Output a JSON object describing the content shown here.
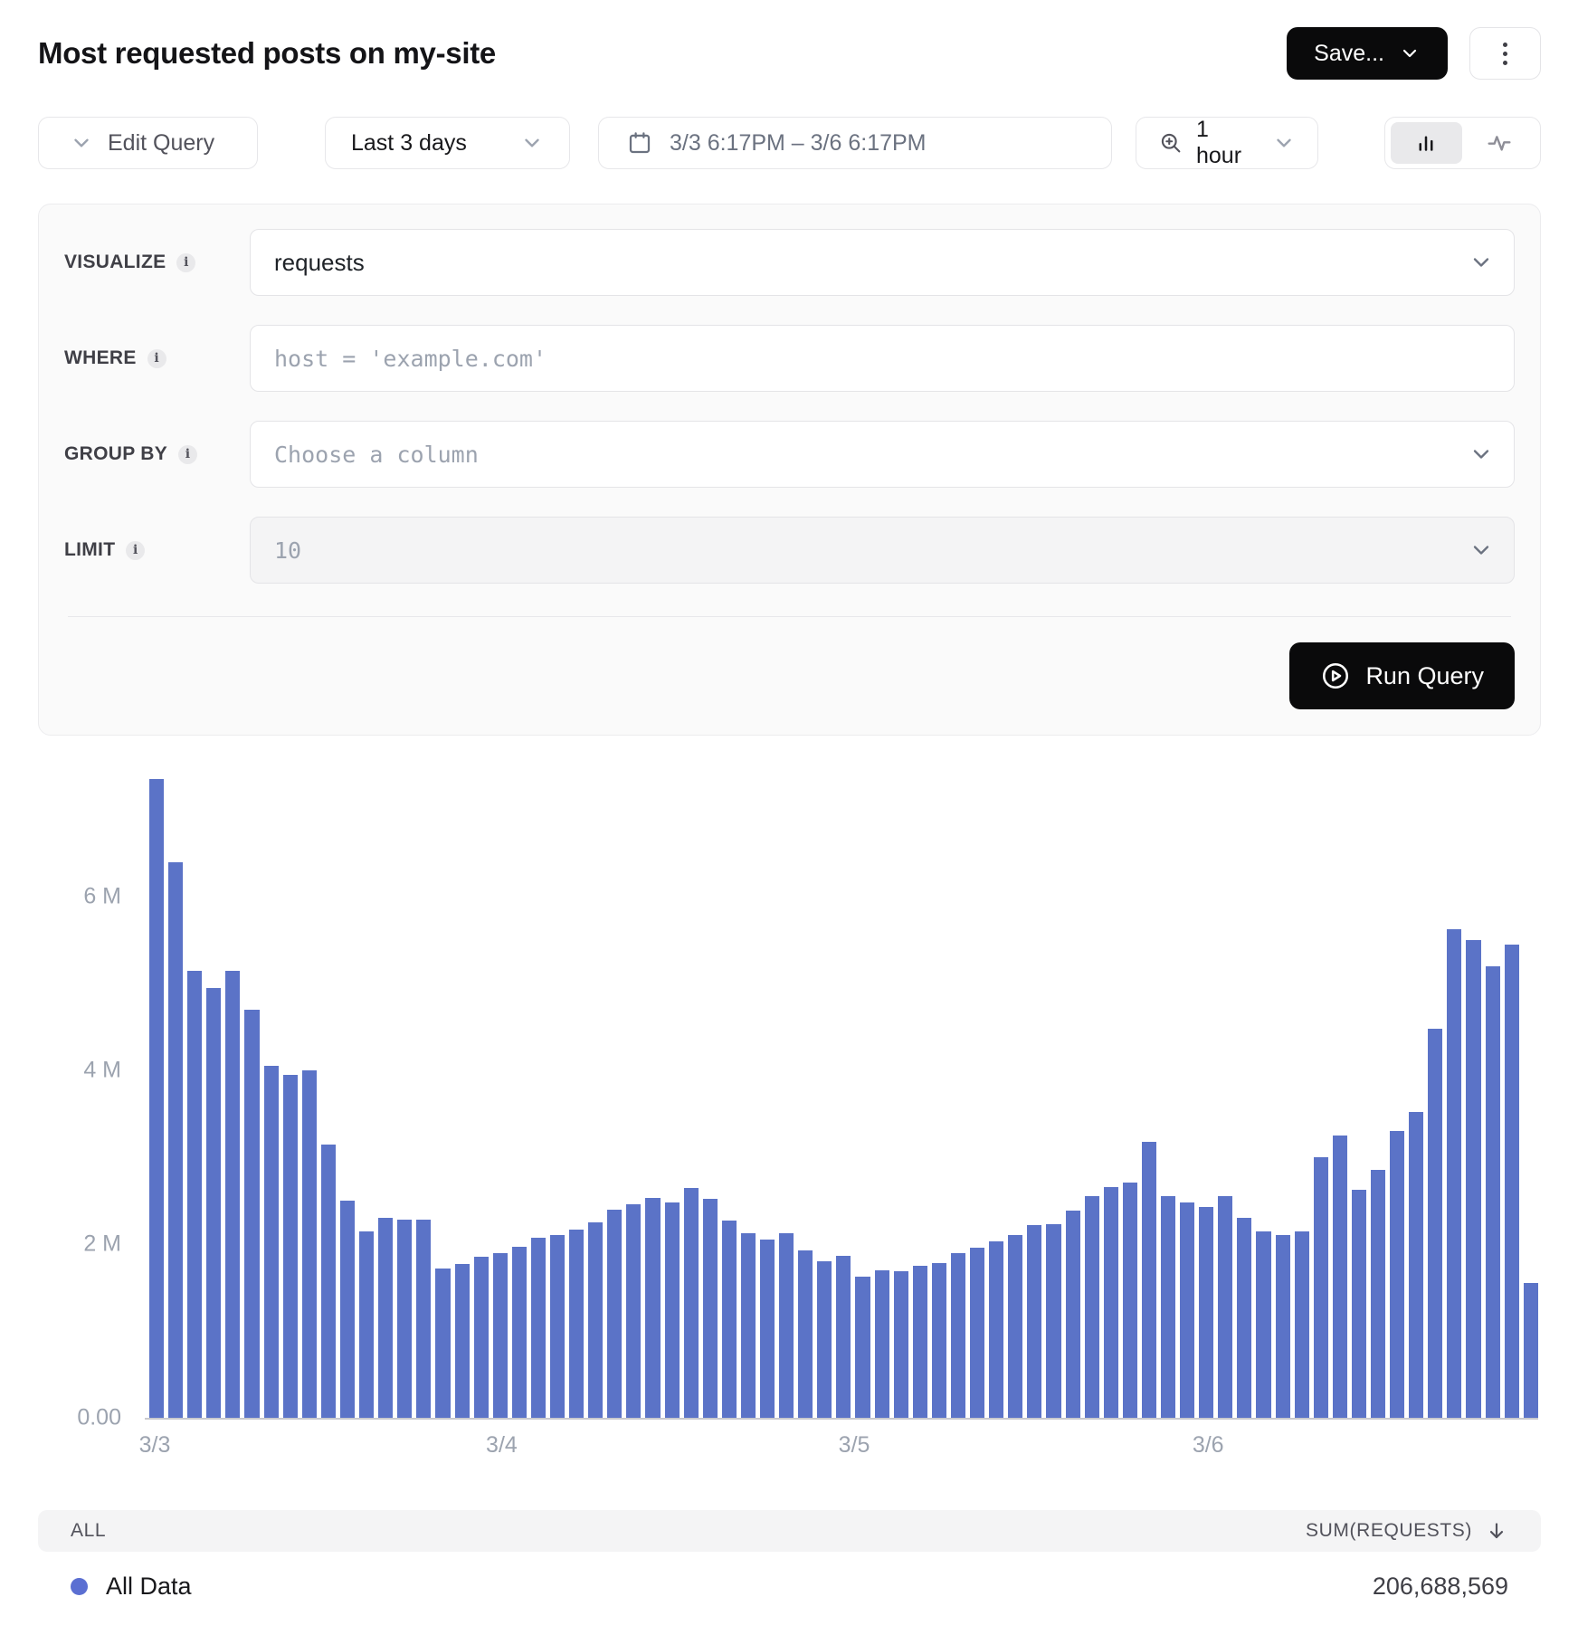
{
  "header": {
    "title": "Most requested posts on my-site",
    "save_label": "Save..."
  },
  "toolbar": {
    "edit_query": "Edit Query",
    "time_range": "Last 3 days",
    "date_range": "3/3 6:17PM – 3/6 6:17PM",
    "interval": "1 hour"
  },
  "query": {
    "visualize_label": "VISUALIZE",
    "visualize_value": "requests",
    "where_label": "WHERE",
    "where_placeholder": "host = 'example.com'",
    "group_by_label": "GROUP BY",
    "group_by_placeholder": "Choose a column",
    "limit_label": "LIMIT",
    "limit_value": "10",
    "run_query": "Run Query"
  },
  "chart_data": {
    "type": "bar",
    "series_name": "All Data",
    "unit": "requests per 1 hour bucket (millions)",
    "color": "#5b73c7",
    "ylim": [
      0,
      7400000
    ],
    "y_ticks": [
      "0.00",
      "2 M",
      "4 M",
      "6 M"
    ],
    "x_ticks": [
      "3/3",
      "3/4",
      "3/5",
      "3/6"
    ],
    "legend_position": "bottom",
    "grid": false,
    "values_millions": [
      7.35,
      6.4,
      5.15,
      4.95,
      5.15,
      4.7,
      4.05,
      3.95,
      4.0,
      3.15,
      2.5,
      2.15,
      2.3,
      2.28,
      2.28,
      1.72,
      1.77,
      1.85,
      1.9,
      1.97,
      2.07,
      2.1,
      2.17,
      2.25,
      2.4,
      2.46,
      2.53,
      2.48,
      2.65,
      2.52,
      2.27,
      2.12,
      2.05,
      2.12,
      1.93,
      1.8,
      1.86,
      1.62,
      1.7,
      1.69,
      1.75,
      1.78,
      1.9,
      1.96,
      2.03,
      2.1,
      2.22,
      2.23,
      2.39,
      2.55,
      2.66,
      2.71,
      3.18,
      2.55,
      2.48,
      2.43,
      2.55,
      2.3,
      2.15,
      2.1,
      2.15,
      3.0,
      3.25,
      2.62,
      2.85,
      3.3,
      3.52,
      4.48,
      5.62,
      5.5,
      5.2,
      5.45,
      1.55
    ]
  },
  "table": {
    "group_header": "ALL",
    "value_header": "SUM(REQUESTS)",
    "rows": [
      {
        "label": "All Data",
        "value": "206,688,569"
      }
    ]
  }
}
